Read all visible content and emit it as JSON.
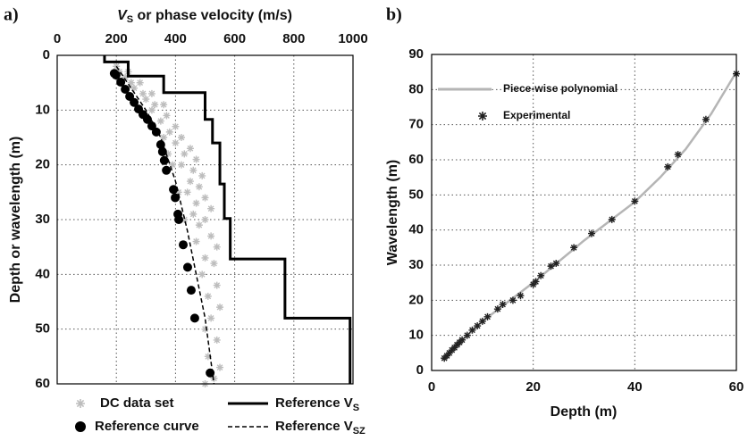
{
  "chart_data": [
    {
      "type": "line",
      "panel": "a)",
      "xlabel": "V",
      "xlabel_sub": "S",
      "xlabel_rest": " or phase velocity (m/s)",
      "ylabel": "Depth or wavelength (m)",
      "xlim": [
        0,
        1000
      ],
      "xticks": [
        0,
        200,
        400,
        600,
        800,
        1000
      ],
      "ylim": [
        0,
        60
      ],
      "yticks": [
        0,
        10,
        20,
        30,
        40,
        50,
        60
      ],
      "y_inverted": true,
      "x_axis_top": true,
      "grid": true,
      "series": [
        {
          "name": "DC data set",
          "color": "#bdbdbd",
          "mark": "star",
          "x": [
            200,
            210,
            240,
            230,
            250,
            280,
            260,
            290,
            320,
            300,
            330,
            360,
            320,
            370,
            350,
            400,
            380,
            420,
            400,
            450,
            430,
            470,
            420,
            460,
            490,
            450,
            480,
            440,
            500,
            470,
            520,
            460,
            500,
            480,
            520,
            470,
            540,
            500,
            530,
            490,
            540,
            510,
            550,
            520,
            500,
            540,
            510,
            550,
            530,
            500,
            390,
            410,
            430,
            360,
            375
          ],
          "y": [
            2,
            3,
            3,
            4,
            5,
            5,
            6,
            7,
            7,
            8,
            9,
            9,
            10,
            11,
            12,
            13,
            14,
            15,
            16,
            17,
            18,
            19,
            20,
            21,
            22,
            23,
            24,
            25,
            26,
            27,
            28,
            29,
            30,
            31,
            33,
            34,
            35,
            37,
            38,
            40,
            42,
            44,
            46,
            48,
            50,
            52,
            55,
            57,
            59,
            60,
            20,
            25,
            30,
            15,
            18
          ]
        },
        {
          "name": "Reference curve",
          "color": "#000000",
          "mark": "dot",
          "x": [
            193,
            199,
            215,
            230,
            245,
            260,
            275,
            290,
            305,
            320,
            335,
            350,
            356,
            362,
            369,
            393,
            399,
            408,
            411,
            426,
            441,
            453,
            465,
            517
          ],
          "y": [
            3.3,
            3.6,
            4.9,
            6.2,
            7.5,
            8.6,
            9.8,
            10.8,
            11.7,
            12.9,
            14,
            16.3,
            17.6,
            19.2,
            21,
            24.5,
            26,
            29,
            30,
            34.6,
            38.7,
            42.9,
            48,
            58
          ]
        },
        {
          "name": "Reference V",
          "name_sub": "S",
          "color": "#000000",
          "mark": "solid",
          "x": [
            160,
            160,
            240,
            240,
            360,
            360,
            500,
            500,
            525,
            525,
            550,
            550,
            565,
            565,
            585,
            585,
            770,
            770,
            990,
            990
          ],
          "y": [
            0,
            1.2,
            1.2,
            3.8,
            3.8,
            6.8,
            6.8,
            11.7,
            11.7,
            16,
            16,
            23.5,
            23.5,
            29.8,
            29.8,
            37.2,
            37.2,
            48,
            48,
            60
          ]
        },
        {
          "name": "Reference V",
          "name_sub": "SZ",
          "color": "#000000",
          "mark": "dashed",
          "x": [
            200,
            250,
            300,
            350,
            400,
            440,
            470,
            500,
            530
          ],
          "y": [
            2,
            6,
            10,
            15,
            23,
            32,
            40,
            48,
            60
          ]
        }
      ]
    },
    {
      "type": "line",
      "panel": "b)",
      "xlabel": "Depth (m)",
      "ylabel": "Wavelength (m)",
      "xlim": [
        0,
        60
      ],
      "xticks": [
        0,
        20,
        40,
        60
      ],
      "ylim": [
        0,
        90
      ],
      "yticks": [
        0,
        10,
        20,
        30,
        40,
        50,
        60,
        70,
        80,
        90
      ],
      "grid": true,
      "series": [
        {
          "name": "Piece-wise polynomial",
          "color": "#b5b5b5",
          "mark": "solid",
          "x": [
            2,
            10,
            20,
            30,
            40,
            45,
            50,
            55,
            60
          ],
          "y": [
            3,
            14,
            25,
            37,
            48,
            55,
            63,
            73,
            85
          ]
        },
        {
          "name": "Experimental",
          "color": "#222222",
          "mark": "star",
          "x": [
            2.5,
            3,
            3.5,
            4,
            4.5,
            5,
            5.5,
            6,
            7,
            8,
            9,
            10,
            11,
            13,
            14,
            16,
            17.5,
            20,
            20.5,
            21.5,
            23.5,
            24.5,
            28,
            31.5,
            35.5,
            40,
            46.5,
            48.5,
            54,
            60
          ],
          "y": [
            3.5,
            4.2,
            5,
            5.8,
            6.5,
            7.3,
            8,
            8.7,
            10,
            11.5,
            12.7,
            14,
            15.3,
            17.5,
            18.8,
            20,
            21.3,
            24.5,
            25.3,
            27,
            29.7,
            30.5,
            35,
            39,
            43,
            48.2,
            58,
            61.5,
            71.5,
            84.5
          ]
        }
      ]
    }
  ]
}
